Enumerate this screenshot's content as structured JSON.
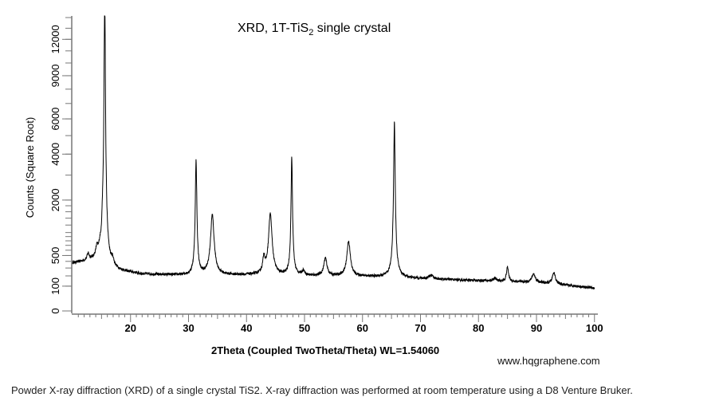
{
  "chart_data": {
    "type": "line",
    "title": {
      "main": "XRD, 1T-TiS",
      "sub": "2",
      "rest": " single crystal"
    },
    "xlabel": "2Theta (Coupled TwoTheta/Theta) WL=1.54060",
    "ylabel": "Counts (Square Root)",
    "xlim": [
      10,
      100
    ],
    "ylim": [
      0,
      14100
    ],
    "yscale": "sqrt",
    "xticks": [
      20,
      30,
      40,
      50,
      60,
      70,
      80,
      90,
      100
    ],
    "yticks": [
      0,
      100,
      500,
      2000,
      4000,
      6000,
      9000,
      12000
    ],
    "grid": false,
    "baseline": [
      [
        10,
        370
      ],
      [
        14,
        420
      ],
      [
        16,
        320
      ],
      [
        18,
        260
      ],
      [
        22,
        220
      ],
      [
        30,
        205
      ],
      [
        40,
        210
      ],
      [
        50,
        200
      ],
      [
        60,
        195
      ],
      [
        70,
        170
      ],
      [
        80,
        150
      ],
      [
        90,
        130
      ],
      [
        100,
        85
      ]
    ],
    "peaks": [
      {
        "x": 12.7,
        "counts": 120,
        "w": 0.2
      },
      {
        "x": 14.2,
        "counts": 180,
        "w": 0.2
      },
      {
        "x": 14.7,
        "counts": 150,
        "w": 0.2
      },
      {
        "x": 15.2,
        "counts": 500,
        "w": 0.15
      },
      {
        "x": 15.55,
        "counts": 16000,
        "w": 0.12
      },
      {
        "x": 16.9,
        "counts": 100,
        "w": 0.2
      },
      {
        "x": 31.3,
        "counts": 3500,
        "w": 0.13
      },
      {
        "x": 34.1,
        "counts": 1300,
        "w": 0.3
      },
      {
        "x": 43.0,
        "counts": 250,
        "w": 0.2
      },
      {
        "x": 44.1,
        "counts": 1330,
        "w": 0.3
      },
      {
        "x": 47.8,
        "counts": 3650,
        "w": 0.12
      },
      {
        "x": 49.8,
        "counts": 60,
        "w": 0.25
      },
      {
        "x": 53.6,
        "counts": 250,
        "w": 0.3
      },
      {
        "x": 57.6,
        "counts": 600,
        "w": 0.3
      },
      {
        "x": 65.5,
        "counts": 5650,
        "w": 0.13
      },
      {
        "x": 71.8,
        "counts": 40,
        "w": 0.4
      },
      {
        "x": 82.8,
        "counts": 30,
        "w": 0.3
      },
      {
        "x": 85.0,
        "counts": 170,
        "w": 0.2
      },
      {
        "x": 89.5,
        "counts": 90,
        "w": 0.35
      },
      {
        "x": 93.0,
        "counts": 120,
        "w": 0.3
      }
    ]
  },
  "watermark": "www.hqgraphene.com",
  "caption": "Powder X-ray diffraction (XRD) of a single crystal TiS2. X-ray diffraction was performed at room temperature using a D8 Venture Bruker."
}
